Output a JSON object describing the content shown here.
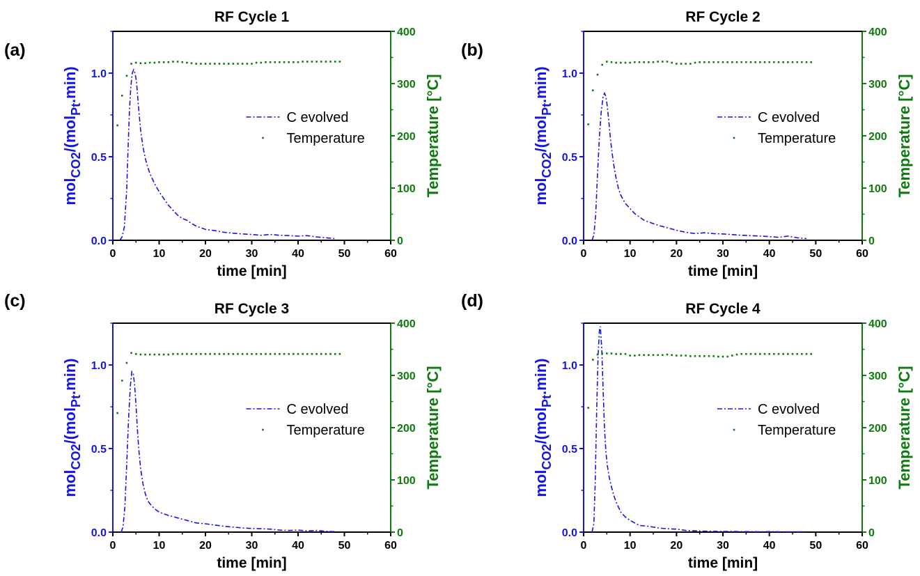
{
  "figure": {
    "colors": {
      "co2": "#1414e6",
      "temperature": "#0e7a0e",
      "axis_x": "#000000"
    }
  },
  "chart_data": [
    {
      "type": "line",
      "panel_label": "(a)",
      "title": "RF Cycle 1",
      "xlabel": "time [min]",
      "ylabel_left": {
        "base": "mol",
        "sub1": "CO2",
        "mid": "/(mol",
        "sub2": "Pt",
        "tail": ".min)"
      },
      "ylabel_right": "Temperature [°C]",
      "xlim": [
        0,
        60
      ],
      "ylim_left": [
        0,
        1.25
      ],
      "ylim_right": [
        0,
        400
      ],
      "xticks": [
        0,
        10,
        20,
        30,
        40,
        50,
        60
      ],
      "yticks_left": [
        0.0,
        0.5,
        1.0
      ],
      "yticks_right": [
        0,
        100,
        200,
        300,
        400
      ],
      "legend_position": "center-right",
      "series": [
        {
          "name": "C evolved",
          "axis": "left",
          "style": "dash-dot",
          "x": [
            1.5,
            2.0,
            2.5,
            3.0,
            3.3,
            3.6,
            3.9,
            4.2,
            4.5,
            4.8,
            5.1,
            5.4,
            5.7,
            6.0,
            6.5,
            7.0,
            7.5,
            8.0,
            9.0,
            10.0,
            11.0,
            12.0,
            13.0,
            14.0,
            15.0,
            16.0,
            17.0,
            18.0,
            20.0,
            22.0,
            24.0,
            26.0,
            28.0,
            30.0,
            32.0,
            34.0,
            36.0,
            38.0,
            40.0,
            42.0,
            44.0,
            46.0,
            48.0
          ],
          "y": [
            0.0,
            0.02,
            0.08,
            0.3,
            0.55,
            0.78,
            0.92,
            1.0,
            1.02,
            1.0,
            0.95,
            0.85,
            0.75,
            0.66,
            0.56,
            0.49,
            0.44,
            0.4,
            0.34,
            0.29,
            0.25,
            0.21,
            0.18,
            0.15,
            0.13,
            0.12,
            0.1,
            0.085,
            0.065,
            0.058,
            0.048,
            0.042,
            0.038,
            0.035,
            0.03,
            0.035,
            0.03,
            0.028,
            0.025,
            0.028,
            0.02,
            0.015,
            0.01
          ]
        },
        {
          "name": "Temperature",
          "axis": "right",
          "style": "dots",
          "x": [
            1,
            2,
            3,
            4,
            5,
            6,
            7,
            8,
            9,
            10,
            11,
            12,
            13,
            14,
            15,
            16,
            17,
            18,
            19,
            20,
            21,
            22,
            23,
            24,
            25,
            26,
            27,
            28,
            29,
            30,
            31,
            32,
            33,
            34,
            35,
            36,
            37,
            38,
            39,
            40,
            41,
            42,
            43,
            44,
            45,
            46,
            47,
            48,
            49
          ],
          "y": [
            220,
            277,
            315,
            338,
            340,
            339,
            339,
            340,
            340,
            341,
            341,
            341,
            342,
            342,
            341,
            340,
            339,
            338,
            338,
            338,
            338,
            338,
            338,
            338,
            338,
            338,
            338,
            338,
            338,
            338,
            340,
            340,
            341,
            341,
            341,
            341,
            341,
            341,
            341,
            341,
            342,
            342,
            342,
            342,
            342,
            342,
            342,
            342,
            342
          ]
        }
      ]
    },
    {
      "type": "line",
      "panel_label": "(b)",
      "title": "RF Cycle 2",
      "xlabel": "time [min]",
      "ylabel_left": {
        "base": "mol",
        "sub1": "CO2",
        "mid": "/(mol",
        "sub2": "Pt",
        "tail": ".min)"
      },
      "ylabel_right": "Temperature [°C]",
      "xlim": [
        0,
        60
      ],
      "ylim_left": [
        0,
        1.25
      ],
      "ylim_right": [
        0,
        400
      ],
      "xticks": [
        0,
        10,
        20,
        30,
        40,
        50,
        60
      ],
      "yticks_left": [
        0.0,
        0.5,
        1.0
      ],
      "yticks_right": [
        0,
        100,
        200,
        300,
        400
      ],
      "legend_position": "center-right",
      "series": [
        {
          "name": "C evolved",
          "axis": "left",
          "style": "dash-dot",
          "x": [
            1.8,
            2.2,
            2.6,
            3.0,
            3.4,
            3.8,
            4.2,
            4.5,
            4.8,
            5.1,
            5.4,
            5.7,
            6.0,
            6.5,
            7.0,
            7.5,
            8.0,
            9.0,
            10.0,
            11.0,
            12.0,
            13.0,
            14.0,
            16.0,
            18.0,
            20.0,
            22.0,
            24.0,
            26.0,
            28.0,
            30.0,
            32.0,
            34.0,
            36.0,
            38.0,
            40.0,
            42.0,
            44.0,
            46.0,
            48.0
          ],
          "y": [
            0.0,
            0.03,
            0.15,
            0.4,
            0.62,
            0.77,
            0.86,
            0.88,
            0.86,
            0.8,
            0.72,
            0.63,
            0.55,
            0.45,
            0.37,
            0.31,
            0.27,
            0.22,
            0.19,
            0.16,
            0.14,
            0.12,
            0.11,
            0.09,
            0.075,
            0.06,
            0.048,
            0.04,
            0.045,
            0.04,
            0.038,
            0.034,
            0.03,
            0.028,
            0.025,
            0.022,
            0.018,
            0.025,
            0.015,
            0.01
          ]
        },
        {
          "name": "Temperature",
          "axis": "right",
          "style": "dots",
          "x": [
            1,
            2,
            3,
            4,
            5,
            6,
            7,
            8,
            9,
            10,
            11,
            12,
            13,
            14,
            15,
            16,
            17,
            18,
            19,
            20,
            21,
            22,
            23,
            24,
            25,
            26,
            27,
            28,
            29,
            30,
            31,
            32,
            33,
            34,
            35,
            36,
            37,
            38,
            39,
            40,
            41,
            42,
            43,
            44,
            45,
            46,
            47,
            48,
            49
          ],
          "y": [
            222,
            287,
            317,
            336,
            342,
            341,
            340,
            340,
            340,
            340,
            341,
            341,
            341,
            341,
            341,
            342,
            342,
            342,
            340,
            338,
            338,
            338,
            338,
            340,
            341,
            341,
            341,
            341,
            341,
            341,
            341,
            341,
            341,
            341,
            341,
            341,
            341,
            341,
            341,
            341,
            341,
            341,
            341,
            341,
            341,
            341,
            341,
            341,
            341
          ]
        }
      ]
    },
    {
      "type": "line",
      "panel_label": "(c)",
      "title": "RF Cycle 3",
      "xlabel": "time [min]",
      "ylabel_left": {
        "base": "mol",
        "sub1": "CO2",
        "mid": "/(mol",
        "sub2": "Pt",
        "tail": ".min)"
      },
      "ylabel_right": "Temperature [°C]",
      "xlim": [
        0,
        60
      ],
      "ylim_left": [
        0,
        1.25
      ],
      "ylim_right": [
        0,
        400
      ],
      "xticks": [
        0,
        10,
        20,
        30,
        40,
        50,
        60
      ],
      "yticks_left": [
        0.0,
        0.5,
        1.0
      ],
      "yticks_right": [
        0,
        100,
        200,
        300,
        400
      ],
      "legend_position": "center-right",
      "series": [
        {
          "name": "C evolved",
          "axis": "left",
          "style": "dash-dot",
          "x": [
            1.8,
            2.2,
            2.6,
            3.0,
            3.4,
            3.8,
            4.1,
            4.4,
            4.7,
            5.0,
            5.3,
            5.6,
            6.0,
            6.5,
            7.0,
            7.5,
            8.0,
            9.0,
            10.0,
            11.0,
            12.0,
            14.0,
            16.0,
            18.0,
            20.0,
            22.0,
            24.0,
            26.0,
            28.0,
            30.0,
            32.0,
            34.0,
            36.0,
            38.0,
            40.0,
            42.0,
            44.0,
            46.0,
            48.0
          ],
          "y": [
            0.0,
            0.03,
            0.15,
            0.4,
            0.68,
            0.88,
            0.96,
            0.95,
            0.88,
            0.76,
            0.62,
            0.5,
            0.38,
            0.29,
            0.23,
            0.19,
            0.17,
            0.14,
            0.12,
            0.11,
            0.1,
            0.085,
            0.07,
            0.055,
            0.05,
            0.042,
            0.035,
            0.03,
            0.025,
            0.022,
            0.02,
            0.018,
            0.012,
            0.01,
            0.012,
            0.008,
            0.01,
            0.005,
            0.003
          ]
        },
        {
          "name": "Temperature",
          "axis": "right",
          "style": "dots",
          "x": [
            1,
            2,
            3,
            4,
            5,
            6,
            7,
            8,
            9,
            10,
            11,
            12,
            13,
            14,
            15,
            16,
            17,
            18,
            19,
            20,
            21,
            22,
            23,
            24,
            25,
            26,
            27,
            28,
            29,
            30,
            31,
            32,
            33,
            34,
            35,
            36,
            37,
            38,
            39,
            40,
            41,
            42,
            43,
            44,
            45,
            46,
            47,
            48,
            49
          ],
          "y": [
            228,
            290,
            324,
            343,
            341,
            340,
            340,
            340,
            340,
            340,
            340,
            340,
            341,
            341,
            341,
            341,
            341,
            341,
            341,
            341,
            341,
            341,
            341,
            341,
            341,
            341,
            341,
            341,
            341,
            341,
            341,
            341,
            341,
            341,
            341,
            341,
            341,
            341,
            341,
            341,
            341,
            341,
            341,
            341,
            341,
            341,
            341,
            341,
            341
          ]
        }
      ]
    },
    {
      "type": "line",
      "panel_label": "(d)",
      "title": "RF Cycle 4",
      "xlabel": "time [min]",
      "ylabel_left": {
        "base": "mol",
        "sub1": "CO2",
        "mid": "/(mol",
        "sub2": "Pt",
        "tail": ".min)"
      },
      "ylabel_right": "Temperature [°C]",
      "xlim": [
        0,
        60
      ],
      "ylim_left": [
        0,
        1.25
      ],
      "ylim_right": [
        0,
        400
      ],
      "xticks": [
        0,
        10,
        20,
        30,
        40,
        50,
        60
      ],
      "yticks_left": [
        0.0,
        0.5,
        1.0
      ],
      "yticks_right": [
        0,
        100,
        200,
        300,
        400
      ],
      "legend_position": "center-right",
      "series": [
        {
          "name": "C evolved",
          "axis": "left",
          "style": "dash-dot",
          "x": [
            1.8,
            2.2,
            2.5,
            2.8,
            3.1,
            3.4,
            3.6,
            3.9,
            4.2,
            4.5,
            4.8,
            5.1,
            5.5,
            6.0,
            6.5,
            7.0,
            7.5,
            8.0,
            9.0,
            10.0,
            11.0,
            12.0,
            14.0,
            16.0,
            18.0,
            20.0,
            22.0,
            24.0,
            26.0,
            28.0,
            30.0,
            32.0,
            34.0,
            36.0,
            38.0,
            40.0,
            42.0,
            44.0,
            46.0,
            48.0
          ],
          "y": [
            0.0,
            0.05,
            0.3,
            0.72,
            1.05,
            1.21,
            1.23,
            1.1,
            0.85,
            0.62,
            0.48,
            0.4,
            0.33,
            0.27,
            0.22,
            0.18,
            0.15,
            0.12,
            0.09,
            0.07,
            0.055,
            0.04,
            0.035,
            0.025,
            0.02,
            0.018,
            0.01,
            0.008,
            0.006,
            0.005,
            0.004,
            0.004,
            0.003,
            0.003,
            0.002,
            0.003,
            0.002,
            0.002,
            0.002,
            0.002
          ]
        },
        {
          "name": "Temperature",
          "axis": "right",
          "style": "dots",
          "x": [
            1,
            2,
            3,
            4,
            5,
            6,
            7,
            8,
            9,
            10,
            11,
            12,
            13,
            14,
            15,
            16,
            17,
            18,
            19,
            20,
            21,
            22,
            23,
            24,
            25,
            26,
            27,
            28,
            29,
            30,
            31,
            32,
            33,
            34,
            35,
            36,
            37,
            38,
            39,
            40,
            41,
            42,
            43,
            44,
            45,
            46,
            47,
            48,
            49
          ],
          "y": [
            238,
            330,
            340,
            342,
            342,
            342,
            341,
            341,
            341,
            338,
            338,
            339,
            339,
            339,
            339,
            339,
            339,
            340,
            339,
            338,
            338,
            338,
            337,
            337,
            337,
            337,
            337,
            337,
            336,
            336,
            336,
            338,
            340,
            341,
            341,
            341,
            341,
            341,
            341,
            341,
            341,
            341,
            341,
            341,
            341,
            341,
            341,
            341,
            341
          ]
        }
      ]
    }
  ]
}
